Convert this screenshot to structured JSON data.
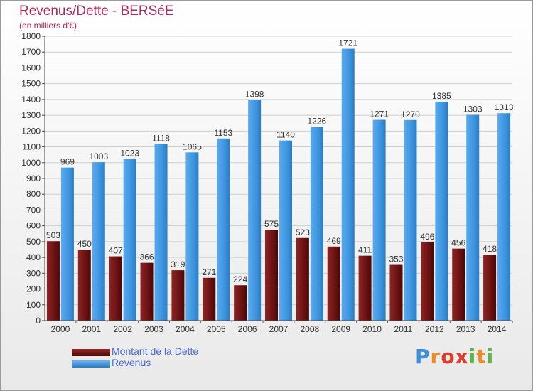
{
  "title": "Revenus/Dette - BERSéE",
  "subtitle": "(en milliers d'€)",
  "logo": {
    "text": "Proxiti",
    "colors": [
      "#3a8fd8",
      "#f08a24",
      "#e03a2a",
      "#5ab84a"
    ]
  },
  "chart_data": {
    "type": "bar",
    "categories": [
      "2000",
      "2001",
      "2002",
      "2003",
      "2004",
      "2005",
      "2006",
      "2007",
      "2008",
      "2009",
      "2010",
      "2011",
      "2012",
      "2013",
      "2014"
    ],
    "series": [
      {
        "name": "Montant de la Dette",
        "color": "#7a1a1a",
        "values": [
          503,
          450,
          407,
          366,
          319,
          271,
          224,
          575,
          523,
          469,
          411,
          353,
          496,
          456,
          418
        ]
      },
      {
        "name": "Revenus",
        "color": "#3d95de",
        "values": [
          969,
          1003,
          1023,
          1118,
          1065,
          1153,
          1398,
          1140,
          1226,
          1721,
          1271,
          1270,
          1385,
          1303,
          1313
        ]
      }
    ],
    "ylim": [
      0,
      1800
    ],
    "ytick_step": 100,
    "grid": true,
    "legend": "bottom-left"
  }
}
